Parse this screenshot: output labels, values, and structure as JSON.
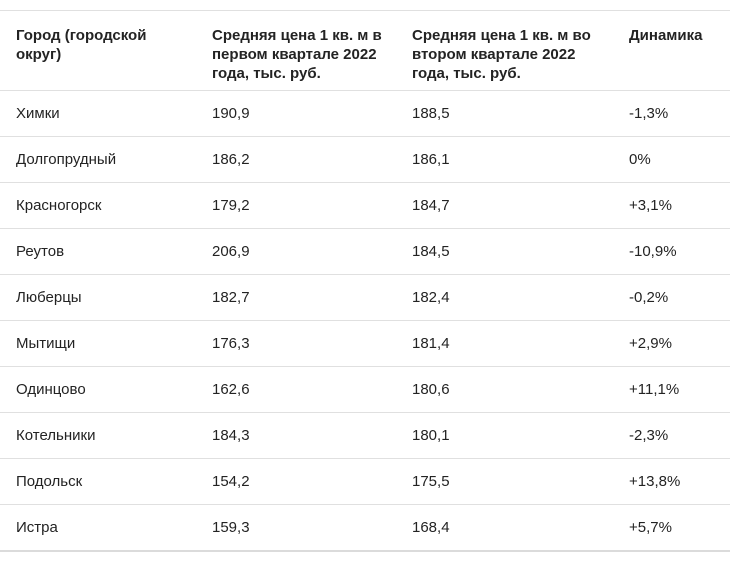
{
  "chart_data": {
    "type": "table",
    "title": "",
    "columns": [
      "Город (городской округ)",
      "Средняя цена 1 кв. м в первом квартале 2022 года, тыс. руб.",
      "Средняя цена 1 кв. м во втором квартале 2022 года, тыс. руб.",
      "Динамика"
    ],
    "rows": [
      [
        "Химки",
        "190,9",
        "188,5",
        "-1,3%"
      ],
      [
        "Долгопрудный",
        "186,2",
        "186,1",
        "0%"
      ],
      [
        "Красногорск",
        "179,2",
        "184,7",
        "+3,1%"
      ],
      [
        "Реутов",
        "206,9",
        "184,5",
        "-10,9%"
      ],
      [
        "Люберцы",
        "182,7",
        "182,4",
        "-0,2%"
      ],
      [
        "Мытищи",
        "176,3",
        "181,4",
        "+2,9%"
      ],
      [
        "Одинцово",
        "162,6",
        "180,6",
        "+11,1%"
      ],
      [
        "Котельники",
        "184,3",
        "180,1",
        "-2,3%"
      ],
      [
        "Подольск",
        "154,2",
        "175,5",
        "+13,8%"
      ],
      [
        "Истра",
        "159,3",
        "168,4",
        "+5,7%"
      ]
    ],
    "cell_names": [
      "city-cell",
      "price-q1-cell",
      "price-q2-cell",
      "dynamics-cell"
    ],
    "units": "тыс. руб. за 1 кв. м"
  },
  "colors": {
    "text": "#232323",
    "row_divider": "#e0e0e0",
    "bottom_border": "#dbdbdb",
    "background": "#ffffff"
  }
}
